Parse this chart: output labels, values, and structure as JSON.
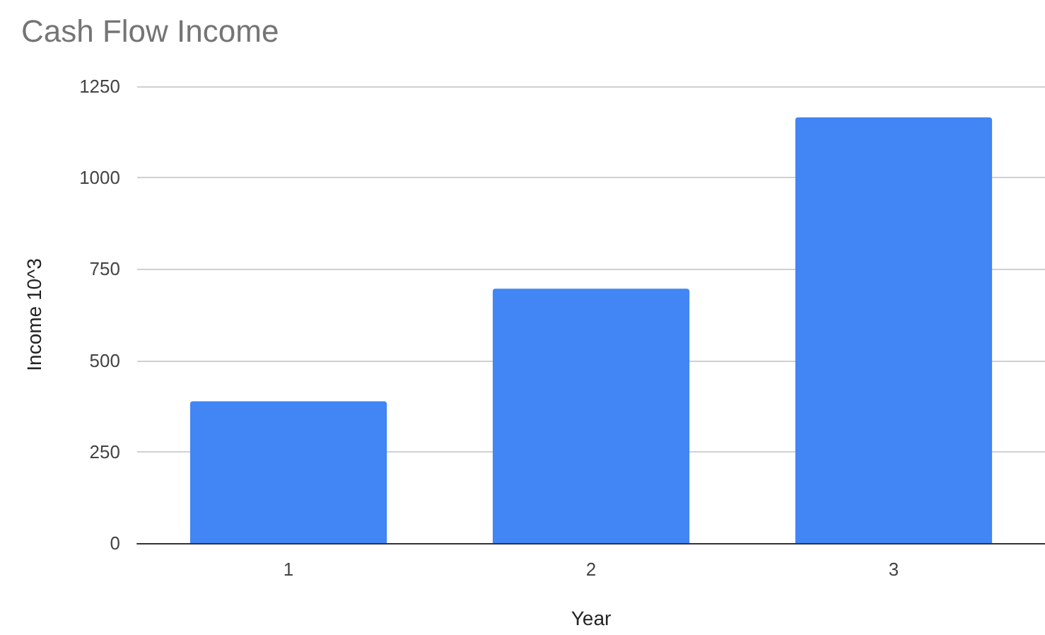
{
  "chart_data": {
    "type": "bar",
    "title": "Cash Flow Income",
    "xlabel": "Year",
    "ylabel": "Income 10^3",
    "categories": [
      "1",
      "2",
      "3"
    ],
    "values": [
      388,
      696,
      1165
    ],
    "color": "#4285f4",
    "ylim": [
      0,
      1250
    ],
    "yticks": [
      0,
      250,
      500,
      750,
      1000,
      1250
    ],
    "grid": "y"
  }
}
